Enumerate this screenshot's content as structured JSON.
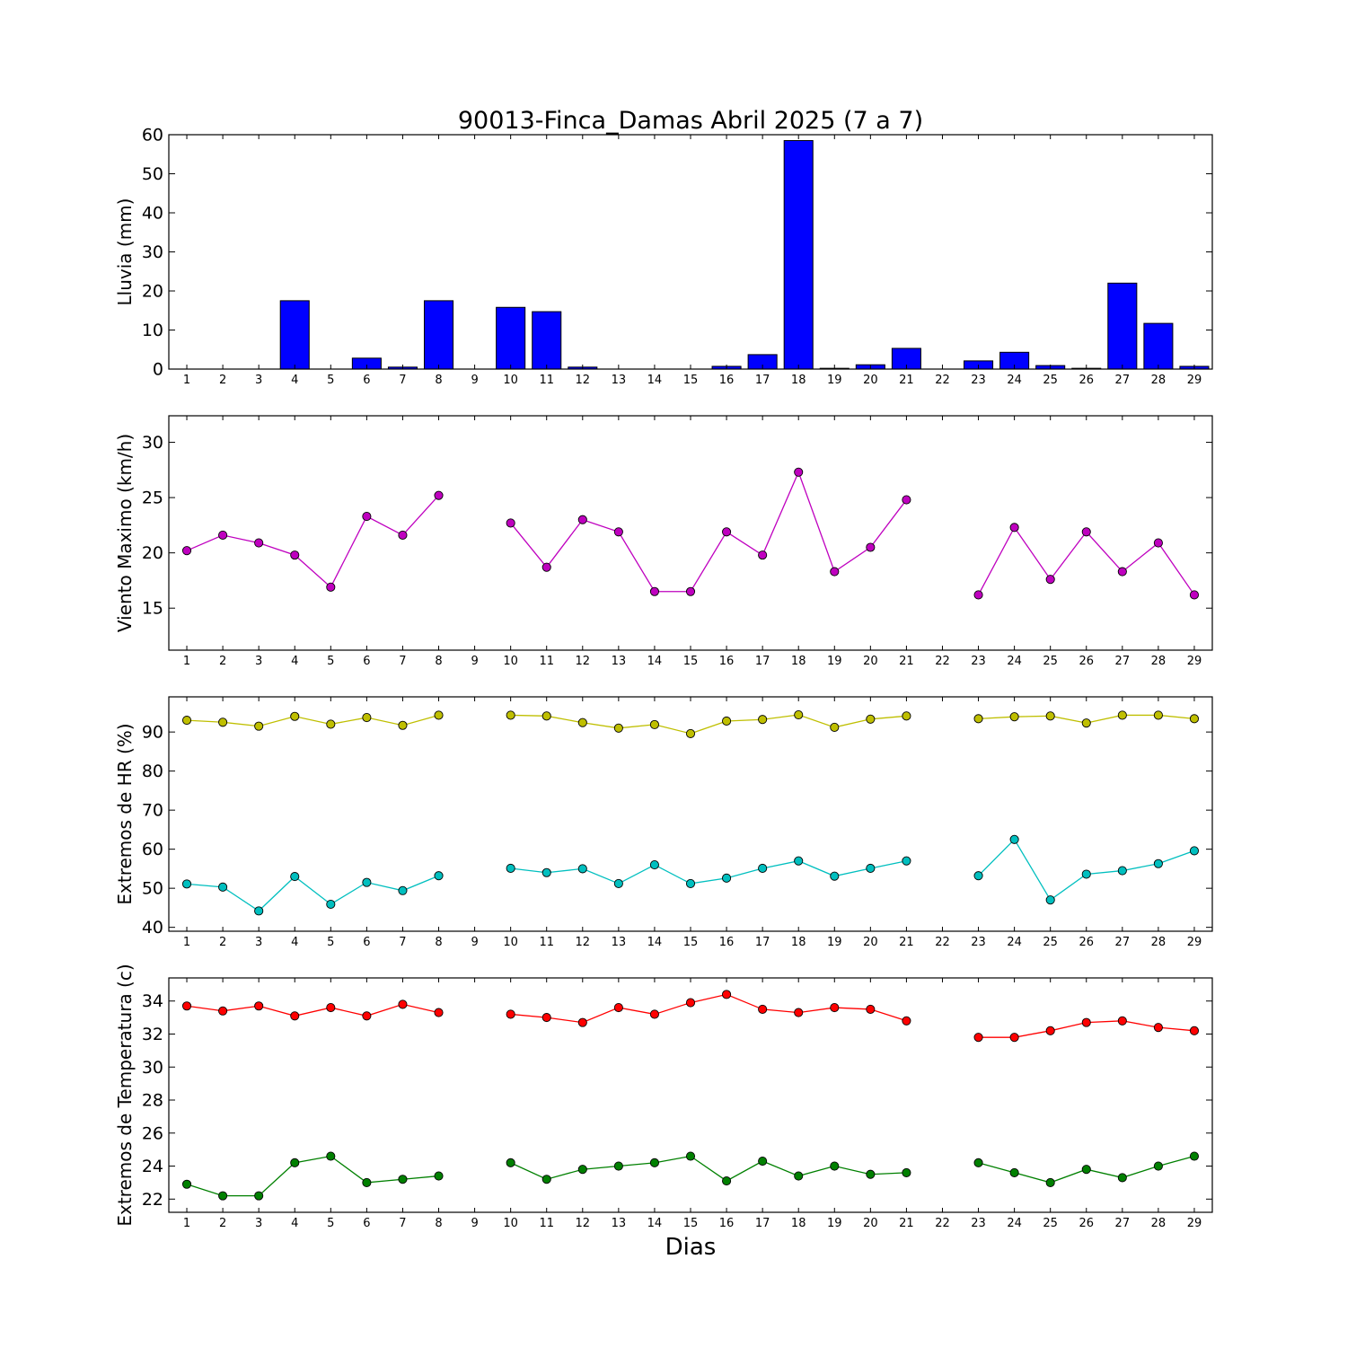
{
  "title": "90013-Finca_Damas Abril 2025  (7 a 7)",
  "xlabel": "Dias",
  "colors": {
    "rain": "#0000ff",
    "wind": "#bf00bf",
    "hr_max": "#bfbf00",
    "hr_min": "#00bfbf",
    "temp_max": "#ff0000",
    "temp_min": "#008000"
  },
  "chart_data": [
    {
      "type": "bar",
      "ylabel": "Lluvia (mm)",
      "ylim": [
        0,
        60
      ],
      "yticks": [
        0,
        10,
        20,
        30,
        40,
        50,
        60
      ],
      "x": [
        1,
        2,
        3,
        4,
        5,
        6,
        7,
        8,
        9,
        10,
        11,
        12,
        13,
        14,
        15,
        16,
        17,
        18,
        19,
        20,
        21,
        22,
        23,
        24,
        25,
        26,
        27,
        28,
        29
      ],
      "series": [
        {
          "color_key": "rain",
          "values": [
            0,
            0,
            0,
            17.5,
            0,
            2.8,
            0.5,
            17.5,
            null,
            15.8,
            14.7,
            0.5,
            0,
            0,
            0,
            0.7,
            3.7,
            58.5,
            0.2,
            1.1,
            5.3,
            null,
            2.1,
            4.3,
            0.9,
            0.2,
            22,
            11.7,
            0.7
          ]
        }
      ]
    },
    {
      "type": "line",
      "ylabel": "Viento Maximo (km/h)",
      "ylim": [
        11.2,
        32.4
      ],
      "yticks": [
        15,
        20,
        25,
        30
      ],
      "x": [
        1,
        2,
        3,
        4,
        5,
        6,
        7,
        8,
        9,
        10,
        11,
        12,
        13,
        14,
        15,
        16,
        17,
        18,
        19,
        20,
        21,
        22,
        23,
        24,
        25,
        26,
        27,
        28,
        29
      ],
      "series": [
        {
          "color_key": "wind",
          "values": [
            20.2,
            21.6,
            20.9,
            19.8,
            16.9,
            23.3,
            21.6,
            25.2,
            null,
            22.7,
            18.7,
            23,
            21.9,
            16.5,
            16.5,
            21.9,
            19.8,
            27.3,
            18.3,
            20.5,
            24.8,
            null,
            16.2,
            22.3,
            17.6,
            21.9,
            18.3,
            20.9,
            16.2
          ]
        }
      ]
    },
    {
      "type": "line",
      "ylabel": "Extremos de HR (%)",
      "ylim": [
        39,
        99
      ],
      "yticks": [
        40,
        50,
        60,
        70,
        80,
        90
      ],
      "x": [
        1,
        2,
        3,
        4,
        5,
        6,
        7,
        8,
        9,
        10,
        11,
        12,
        13,
        14,
        15,
        16,
        17,
        18,
        19,
        20,
        21,
        22,
        23,
        24,
        25,
        26,
        27,
        28,
        29
      ],
      "series": [
        {
          "color_key": "hr_max",
          "values": [
            93,
            92.5,
            91.5,
            94,
            92,
            93.7,
            91.7,
            94.3,
            null,
            94.3,
            94.1,
            92.4,
            91,
            91.9,
            89.6,
            92.8,
            93.2,
            94.4,
            91.2,
            93.3,
            94.1,
            null,
            93.4,
            93.9,
            94.1,
            92.3,
            94.3,
            94.3,
            93.4
          ]
        },
        {
          "color_key": "hr_min",
          "values": [
            51.1,
            50.3,
            44.2,
            53,
            45.9,
            51.5,
            49.4,
            53.2,
            null,
            55.1,
            54,
            55,
            51.2,
            56,
            51.2,
            52.6,
            55.1,
            57,
            53.1,
            55.1,
            57,
            null,
            53.2,
            62.5,
            47,
            53.6,
            54.5,
            56.3,
            59.6
          ]
        }
      ]
    },
    {
      "type": "line",
      "ylabel": "Extremos de Temperatura (c)",
      "ylim": [
        21.2,
        35.4
      ],
      "yticks": [
        22,
        24,
        26,
        28,
        30,
        32,
        34
      ],
      "x": [
        1,
        2,
        3,
        4,
        5,
        6,
        7,
        8,
        9,
        10,
        11,
        12,
        13,
        14,
        15,
        16,
        17,
        18,
        19,
        20,
        21,
        22,
        23,
        24,
        25,
        26,
        27,
        28,
        29
      ],
      "series": [
        {
          "color_key": "temp_max",
          "values": [
            33.7,
            33.4,
            33.7,
            33.1,
            33.6,
            33.1,
            33.8,
            33.3,
            null,
            33.2,
            33,
            32.7,
            33.6,
            33.2,
            33.9,
            34.4,
            33.5,
            33.3,
            33.6,
            33.5,
            32.8,
            null,
            31.8,
            31.8,
            32.2,
            32.7,
            32.8,
            32.4,
            32.2
          ]
        },
        {
          "color_key": "temp_min",
          "values": [
            22.9,
            22.2,
            22.2,
            24.2,
            24.6,
            23,
            23.2,
            23.4,
            null,
            24.2,
            23.2,
            23.8,
            24,
            24.2,
            24.6,
            23.1,
            24.3,
            23.4,
            24,
            23.5,
            23.6,
            null,
            24.2,
            23.6,
            23,
            23.8,
            23.3,
            24,
            24.6
          ]
        }
      ]
    }
  ]
}
